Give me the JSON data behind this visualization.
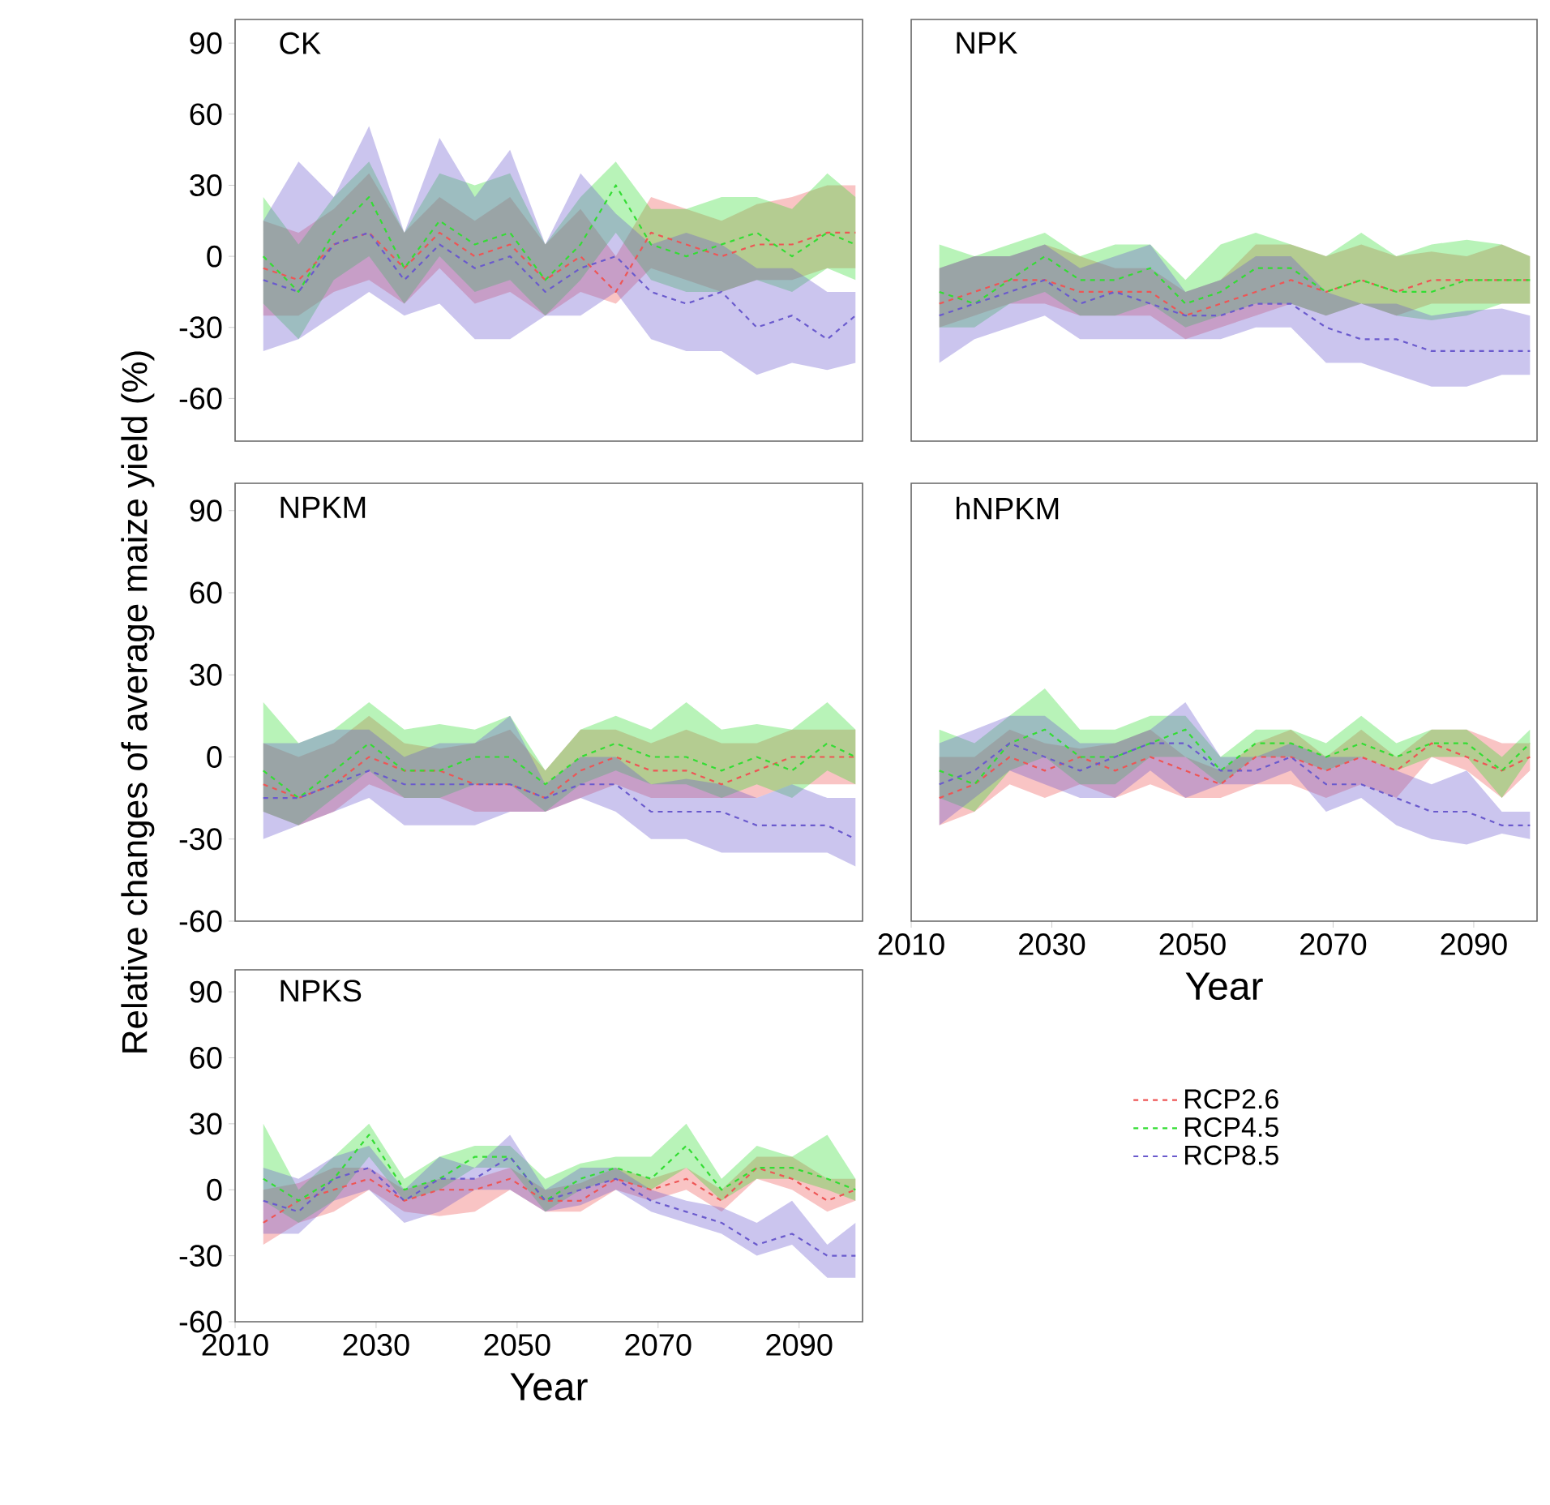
{
  "chart_data": [
    {
      "type": "line",
      "title": "CK",
      "line_style": "dashed",
      "tick_labels": "y",
      "xlim": [
        2010,
        2099
      ],
      "ylim": [
        -78,
        100
      ],
      "yticks": [
        -60,
        -30,
        0,
        30,
        60,
        90
      ],
      "x": [
        2014,
        2019,
        2024,
        2029,
        2034,
        2039,
        2044,
        2049,
        2054,
        2059,
        2064,
        2069,
        2074,
        2079,
        2084,
        2089,
        2094,
        2098
      ],
      "series": [
        {
          "color": "#ee5555",
          "values": [
            -5,
            -10,
            5,
            10,
            -5,
            10,
            0,
            5,
            -10,
            0,
            -15,
            10,
            5,
            0,
            5,
            5,
            10,
            10
          ],
          "lower": [
            -25,
            -25,
            -15,
            -10,
            -20,
            -5,
            -20,
            -15,
            -25,
            -15,
            -20,
            -5,
            -10,
            -15,
            -10,
            -10,
            -5,
            -5
          ],
          "upper": [
            15,
            10,
            20,
            35,
            10,
            25,
            15,
            25,
            5,
            20,
            0,
            25,
            20,
            15,
            22,
            25,
            30,
            30
          ]
        },
        {
          "color": "#33dd33",
          "values": [
            0,
            -15,
            10,
            25,
            -5,
            15,
            5,
            10,
            -10,
            5,
            30,
            5,
            0,
            5,
            10,
            0,
            10,
            5
          ],
          "lower": [
            -20,
            -35,
            -10,
            0,
            -20,
            0,
            -15,
            -10,
            -25,
            -10,
            10,
            -10,
            -15,
            -15,
            -10,
            -15,
            -5,
            -10
          ],
          "upper": [
            25,
            5,
            25,
            40,
            10,
            35,
            30,
            35,
            5,
            25,
            40,
            20,
            20,
            25,
            25,
            20,
            35,
            25
          ]
        },
        {
          "color": "#6a5acd",
          "values": [
            -10,
            -15,
            5,
            10,
            -10,
            5,
            -5,
            0,
            -15,
            -5,
            0,
            -15,
            -20,
            -15,
            -30,
            -25,
            -35,
            -25
          ],
          "lower": [
            -40,
            -35,
            -25,
            -15,
            -25,
            -20,
            -35,
            -35,
            -25,
            -25,
            -15,
            -35,
            -40,
            -40,
            -50,
            -45,
            -48,
            -45
          ],
          "upper": [
            15,
            40,
            25,
            55,
            10,
            50,
            25,
            45,
            5,
            35,
            18,
            5,
            10,
            5,
            -5,
            -5,
            -15,
            -15
          ]
        }
      ]
    },
    {
      "type": "line",
      "title": "NPK",
      "line_style": "dashed",
      "tick_labels": false,
      "xlim": [
        2010,
        2099
      ],
      "ylim": [
        -78,
        100
      ],
      "x": [
        2014,
        2019,
        2024,
        2029,
        2034,
        2039,
        2044,
        2049,
        2054,
        2059,
        2064,
        2069,
        2074,
        2079,
        2084,
        2089,
        2094,
        2098
      ],
      "series": [
        {
          "color": "#ee5555",
          "values": [
            -20,
            -15,
            -10,
            -10,
            -15,
            -15,
            -15,
            -25,
            -20,
            -15,
            -10,
            -15,
            -10,
            -15,
            -10,
            -10,
            -10,
            -10
          ],
          "lower": [
            -30,
            -25,
            -20,
            -20,
            -25,
            -25,
            -25,
            -35,
            -30,
            -25,
            -20,
            -25,
            -20,
            -25,
            -20,
            -20,
            -20,
            -20
          ],
          "upper": [
            -5,
            0,
            0,
            5,
            0,
            -5,
            -5,
            -15,
            -10,
            5,
            5,
            0,
            5,
            0,
            2,
            0,
            5,
            0
          ]
        },
        {
          "color": "#33dd33",
          "values": [
            -15,
            -20,
            -10,
            0,
            -10,
            -10,
            -5,
            -20,
            -15,
            -5,
            -5,
            -15,
            -10,
            -15,
            -15,
            -10,
            -10,
            -10
          ],
          "lower": [
            -30,
            -30,
            -20,
            -15,
            -25,
            -25,
            -20,
            -30,
            -25,
            -20,
            -20,
            -25,
            -20,
            -25,
            -27,
            -25,
            -20,
            -20
          ],
          "upper": [
            5,
            0,
            5,
            10,
            0,
            5,
            5,
            -10,
            5,
            10,
            5,
            0,
            10,
            0,
            5,
            7,
            5,
            0
          ]
        },
        {
          "color": "#6a5acd",
          "values": [
            -25,
            -20,
            -15,
            -10,
            -20,
            -15,
            -20,
            -25,
            -25,
            -20,
            -20,
            -30,
            -35,
            -35,
            -40,
            -40,
            -40,
            -40
          ],
          "lower": [
            -45,
            -35,
            -30,
            -25,
            -35,
            -35,
            -35,
            -35,
            -35,
            -30,
            -30,
            -45,
            -45,
            -50,
            -55,
            -55,
            -50,
            -50
          ],
          "upper": [
            -5,
            0,
            0,
            5,
            -5,
            0,
            5,
            -15,
            -10,
            0,
            0,
            -15,
            -20,
            -20,
            -25,
            -23,
            -22,
            -25
          ]
        }
      ]
    },
    {
      "type": "line",
      "title": "NPKM",
      "ylabel": "Relative changes of average maize yield  (%)",
      "line_style": "dashed",
      "tick_labels": "y",
      "xlim": [
        2010,
        2099
      ],
      "ylim": [
        -60,
        100
      ],
      "yticks": [
        -60,
        -30,
        0,
        30,
        60,
        90
      ],
      "x": [
        2014,
        2019,
        2024,
        2029,
        2034,
        2039,
        2044,
        2049,
        2054,
        2059,
        2064,
        2069,
        2074,
        2079,
        2084,
        2089,
        2094,
        2098
      ],
      "series": [
        {
          "color": "#ee5555",
          "values": [
            -10,
            -15,
            -10,
            0,
            -5,
            -5,
            -10,
            -10,
            -15,
            -5,
            0,
            -5,
            -5,
            -10,
            -5,
            0,
            0,
            0
          ],
          "lower": [
            -20,
            -25,
            -20,
            -10,
            -15,
            -15,
            -20,
            -20,
            -20,
            -15,
            -10,
            -15,
            -15,
            -15,
            -15,
            -10,
            -10,
            -10
          ],
          "upper": [
            5,
            0,
            5,
            15,
            5,
            3,
            5,
            10,
            -5,
            10,
            10,
            5,
            10,
            5,
            5,
            10,
            10,
            10
          ]
        },
        {
          "color": "#33dd33",
          "values": [
            -5,
            -15,
            -5,
            5,
            -5,
            -5,
            0,
            0,
            -10,
            0,
            5,
            0,
            0,
            -5,
            0,
            -5,
            5,
            0
          ],
          "lower": [
            -20,
            -25,
            -15,
            -5,
            -15,
            -15,
            -10,
            -10,
            -20,
            -10,
            -5,
            -10,
            -10,
            -15,
            -10,
            -15,
            -5,
            -10
          ],
          "upper": [
            20,
            5,
            10,
            20,
            10,
            12,
            10,
            15,
            -5,
            10,
            15,
            10,
            20,
            10,
            12,
            10,
            20,
            10
          ]
        },
        {
          "color": "#6a5acd",
          "values": [
            -15,
            -15,
            -10,
            -5,
            -10,
            -10,
            -10,
            -10,
            -15,
            -10,
            -10,
            -20,
            -20,
            -20,
            -25,
            -25,
            -25,
            -30
          ],
          "lower": [
            -30,
            -25,
            -20,
            -15,
            -25,
            -25,
            -25,
            -20,
            -20,
            -15,
            -20,
            -30,
            -30,
            -35,
            -35,
            -35,
            -35,
            -40
          ],
          "upper": [
            5,
            5,
            10,
            10,
            0,
            5,
            5,
            15,
            -10,
            0,
            0,
            -10,
            -8,
            -10,
            -15,
            -10,
            -15,
            -15
          ]
        }
      ]
    },
    {
      "type": "line",
      "title": "hNPKM",
      "xlabel": "Year",
      "line_style": "dashed",
      "tick_labels": "x",
      "xlim": [
        2010,
        2099
      ],
      "ylim": [
        -60,
        100
      ],
      "xticks": [
        2010,
        2030,
        2050,
        2070,
        2090
      ],
      "x": [
        2014,
        2019,
        2024,
        2029,
        2034,
        2039,
        2044,
        2049,
        2054,
        2059,
        2064,
        2069,
        2074,
        2079,
        2084,
        2089,
        2094,
        2098
      ],
      "series": [
        {
          "color": "#ee5555",
          "values": [
            -15,
            -10,
            0,
            -5,
            0,
            -5,
            0,
            -5,
            -10,
            0,
            0,
            -5,
            0,
            -5,
            5,
            0,
            -5,
            0
          ],
          "lower": [
            -25,
            -20,
            -10,
            -15,
            -10,
            -15,
            -10,
            -15,
            -15,
            -10,
            -10,
            -15,
            -10,
            -15,
            0,
            -5,
            -15,
            -5
          ],
          "upper": [
            0,
            0,
            10,
            5,
            3,
            5,
            10,
            0,
            -5,
            5,
            10,
            0,
            10,
            0,
            10,
            10,
            5,
            5
          ]
        },
        {
          "color": "#33dd33",
          "values": [
            -5,
            -10,
            5,
            10,
            0,
            0,
            5,
            10,
            -5,
            5,
            5,
            0,
            5,
            0,
            5,
            5,
            -5,
            5
          ],
          "lower": [
            -15,
            -20,
            -5,
            0,
            -10,
            -10,
            0,
            0,
            -10,
            0,
            0,
            -5,
            0,
            -5,
            0,
            0,
            -15,
            0
          ],
          "upper": [
            10,
            5,
            15,
            25,
            10,
            10,
            15,
            15,
            0,
            10,
            10,
            5,
            15,
            5,
            10,
            10,
            0,
            10
          ]
        },
        {
          "color": "#6a5acd",
          "values": [
            -10,
            -5,
            5,
            0,
            -5,
            0,
            5,
            5,
            -5,
            -5,
            0,
            -10,
            -10,
            -15,
            -20,
            -20,
            -25,
            -25
          ],
          "lower": [
            -25,
            -15,
            -5,
            -10,
            -15,
            -15,
            -5,
            -15,
            -10,
            -10,
            -5,
            -20,
            -15,
            -25,
            -30,
            -32,
            -28,
            -30
          ],
          "upper": [
            5,
            10,
            15,
            15,
            5,
            5,
            10,
            20,
            0,
            0,
            5,
            0,
            0,
            -5,
            -10,
            -5,
            -20,
            -20
          ]
        }
      ]
    },
    {
      "type": "line",
      "title": "NPKS",
      "xlabel": "Year",
      "line_style": "dashed",
      "legend": "right",
      "xlim": [
        2010,
        2099
      ],
      "ylim": [
        -60,
        100
      ],
      "xticks": [
        2010,
        2030,
        2050,
        2070,
        2090
      ],
      "yticks": [
        -60,
        -30,
        0,
        30,
        60,
        90
      ],
      "x": [
        2014,
        2019,
        2024,
        2029,
        2034,
        2039,
        2044,
        2049,
        2054,
        2059,
        2064,
        2069,
        2074,
        2079,
        2084,
        2089,
        2094,
        2098
      ],
      "series": [
        {
          "name": "RCP2.6",
          "color": "#ee5555",
          "values": [
            -15,
            -5,
            0,
            5,
            -5,
            0,
            0,
            5,
            -5,
            -5,
            5,
            0,
            5,
            -5,
            10,
            5,
            -5,
            0
          ],
          "lower": [
            -25,
            -15,
            -10,
            0,
            -10,
            -12,
            -10,
            0,
            -10,
            -10,
            0,
            -5,
            0,
            -10,
            5,
            0,
            -10,
            -5
          ],
          "upper": [
            0,
            3,
            10,
            10,
            0,
            5,
            5,
            10,
            0,
            3,
            10,
            5,
            10,
            0,
            15,
            15,
            5,
            5
          ]
        },
        {
          "name": "RCP4.5",
          "color": "#33dd33",
          "values": [
            5,
            -5,
            5,
            25,
            0,
            5,
            15,
            15,
            -5,
            5,
            10,
            5,
            20,
            0,
            10,
            10,
            5,
            0
          ],
          "lower": [
            -5,
            -15,
            -5,
            15,
            -5,
            0,
            10,
            10,
            -10,
            0,
            5,
            0,
            10,
            -5,
            5,
            5,
            0,
            -5
          ],
          "upper": [
            30,
            0,
            15,
            30,
            5,
            15,
            20,
            20,
            5,
            12,
            15,
            15,
            30,
            5,
            20,
            15,
            25,
            5
          ]
        },
        {
          "name": "RCP8.5",
          "color": "#6a5acd",
          "values": [
            -5,
            -10,
            5,
            10,
            -5,
            5,
            5,
            15,
            -5,
            0,
            5,
            -5,
            -10,
            -15,
            -25,
            -20,
            -30,
            -30
          ],
          "lower": [
            -20,
            -20,
            -5,
            0,
            -15,
            -10,
            0,
            0,
            -10,
            -7,
            0,
            -10,
            -15,
            -20,
            -30,
            -25,
            -40,
            -40
          ],
          "upper": [
            10,
            5,
            15,
            20,
            0,
            15,
            10,
            25,
            0,
            10,
            10,
            0,
            -5,
            -8,
            -15,
            -5,
            -25,
            -15
          ]
        }
      ]
    }
  ]
}
